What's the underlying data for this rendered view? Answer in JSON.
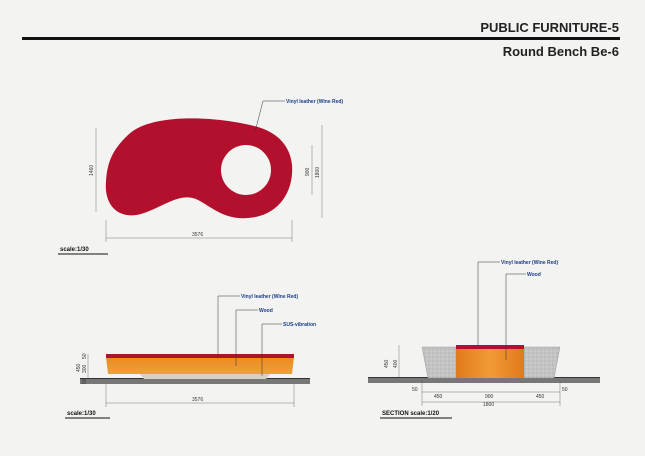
{
  "header": {
    "title": "PUBLIC FURNITURE-5",
    "subtitle": "Round Bench Be-6"
  },
  "plan_view": {
    "material_label": "Vinyl leather (Wine Red)",
    "dim_width": "3576",
    "dim_height": "1460",
    "dim_hole": "900",
    "dim_hole_outer": "1800",
    "scale": "scale:1/30"
  },
  "elevation_view": {
    "label_material": "Vinyl leather (Wine Red)",
    "label_wood": "Wood",
    "label_sus": "SUS-vibration",
    "dim_width": "3576",
    "dim_h1": "450",
    "dim_h2": "50",
    "dim_h3": "300",
    "dim_h4": "50",
    "scale": "scale:1/30"
  },
  "section_view": {
    "label_material": "Vinyl leather (Wine Red)",
    "label_wood": "Wood",
    "dim_h1": "450",
    "dim_h2": "400",
    "dim_50_left": "50",
    "dim_450_left": "450",
    "dim_900": "900",
    "dim_450_right": "450",
    "dim_50_right": "50",
    "dim_1800": "1800",
    "scale": "SECTION  scale:1/20"
  },
  "colors": {
    "wine_red": "#b3102d",
    "wood_orange": "#ec8a24",
    "concrete": "#bdbdbd"
  }
}
